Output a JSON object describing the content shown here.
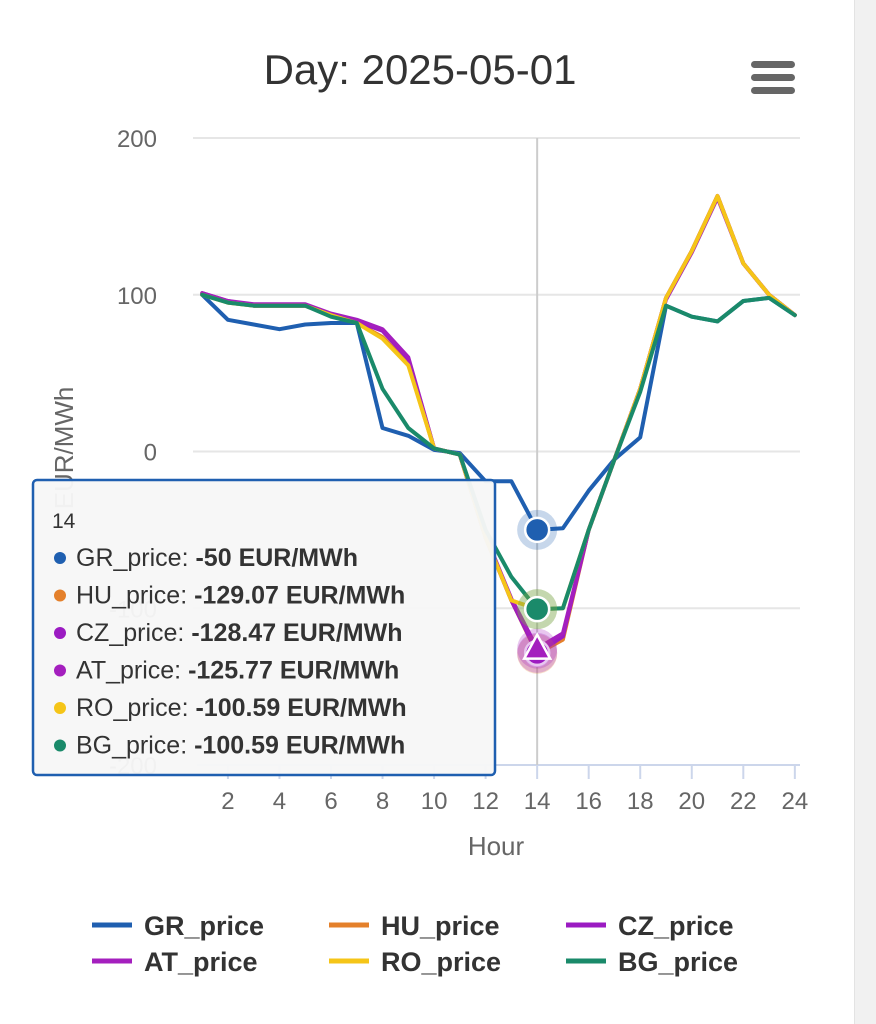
{
  "chart_data": {
    "type": "line",
    "title": "Day: 2025-05-01",
    "xlabel": "Hour",
    "ylabel": "EUR/MWh",
    "xlim": [
      0.8,
      24.2
    ],
    "ylim": [
      -200,
      200
    ],
    "xticks": [
      2,
      4,
      6,
      8,
      10,
      12,
      14,
      16,
      18,
      20,
      22,
      24
    ],
    "yticks": [
      200,
      100,
      0,
      -100,
      -200
    ],
    "ytick_labels": [
      "200",
      "100",
      "0",
      "-100",
      "-200"
    ],
    "grid": "horizontal",
    "legend": "bottom",
    "x": [
      1,
      2,
      3,
      4,
      5,
      6,
      7,
      8,
      9,
      10,
      11,
      12,
      13,
      14,
      15,
      16,
      17,
      18,
      19,
      20,
      21,
      22,
      23,
      24
    ],
    "series": [
      {
        "name": "GR_price",
        "color": "#1f5fb0",
        "values": [
          100,
          84,
          81,
          78,
          81,
          82,
          82,
          15,
          10,
          1,
          -1,
          -19,
          -19,
          -50,
          -49,
          -25,
          -5,
          9,
          93,
          86,
          83,
          96,
          98,
          87
        ]
      },
      {
        "name": "HU_price",
        "color": "#e4802b",
        "values": [
          101,
          95,
          93,
          93,
          93,
          87,
          82,
          73,
          56,
          2,
          -2,
          -55,
          -95,
          -129.07,
          -120,
          -50,
          -5,
          40,
          98,
          128,
          163,
          120,
          100,
          87
        ]
      },
      {
        "name": "CZ_price",
        "color": "#9b1bc2",
        "values": [
          101,
          96,
          93,
          93,
          93,
          87,
          83,
          77,
          59,
          2,
          -2,
          -55,
          -95,
          -128.47,
          -118,
          -50,
          -5,
          40,
          98,
          128,
          163,
          120,
          100,
          87
        ]
      },
      {
        "name": "AT_price",
        "color": "#a41fbe",
        "values": [
          101,
          96,
          94,
          94,
          94,
          88,
          84,
          78,
          60,
          2,
          -2,
          -54,
          -94,
          -125.77,
          -116,
          -50,
          -5,
          40,
          97,
          127,
          162,
          120,
          100,
          87
        ]
      },
      {
        "name": "RO_price",
        "color": "#f5c518",
        "values": [
          100,
          95,
          93,
          93,
          93,
          87,
          82,
          72,
          55,
          2,
          -2,
          -55,
          -95,
          -100.59,
          -100,
          -50,
          -5,
          40,
          98,
          128,
          163,
          120,
          100,
          87
        ]
      },
      {
        "name": "BG_price",
        "color": "#1a8a6a",
        "values": [
          100,
          95,
          93,
          93,
          93,
          86,
          82,
          40,
          15,
          2,
          -2,
          -50,
          -80,
          -100.59,
          -100,
          -50,
          -5,
          38,
          93,
          86,
          83,
          96,
          98,
          87
        ]
      }
    ],
    "tooltip": {
      "header": "14",
      "rows": [
        {
          "name": "GR_price",
          "value": "-50 EUR/MWh",
          "color": "#1f5fb0"
        },
        {
          "name": "HU_price",
          "value": "-129.07 EUR/MWh",
          "color": "#e4802b"
        },
        {
          "name": "CZ_price",
          "value": "-128.47 EUR/MWh",
          "color": "#9b1bc2"
        },
        {
          "name": "AT_price",
          "value": "-125.77 EUR/MWh",
          "color": "#a41fbe"
        },
        {
          "name": "RO_price",
          "value": "-100.59 EUR/MWh",
          "color": "#f5c518"
        },
        {
          "name": "BG_price",
          "value": "-100.59 EUR/MWh",
          "color": "#1a8a6a"
        }
      ]
    }
  },
  "icons": {
    "menu": "hamburger-menu-icon"
  }
}
